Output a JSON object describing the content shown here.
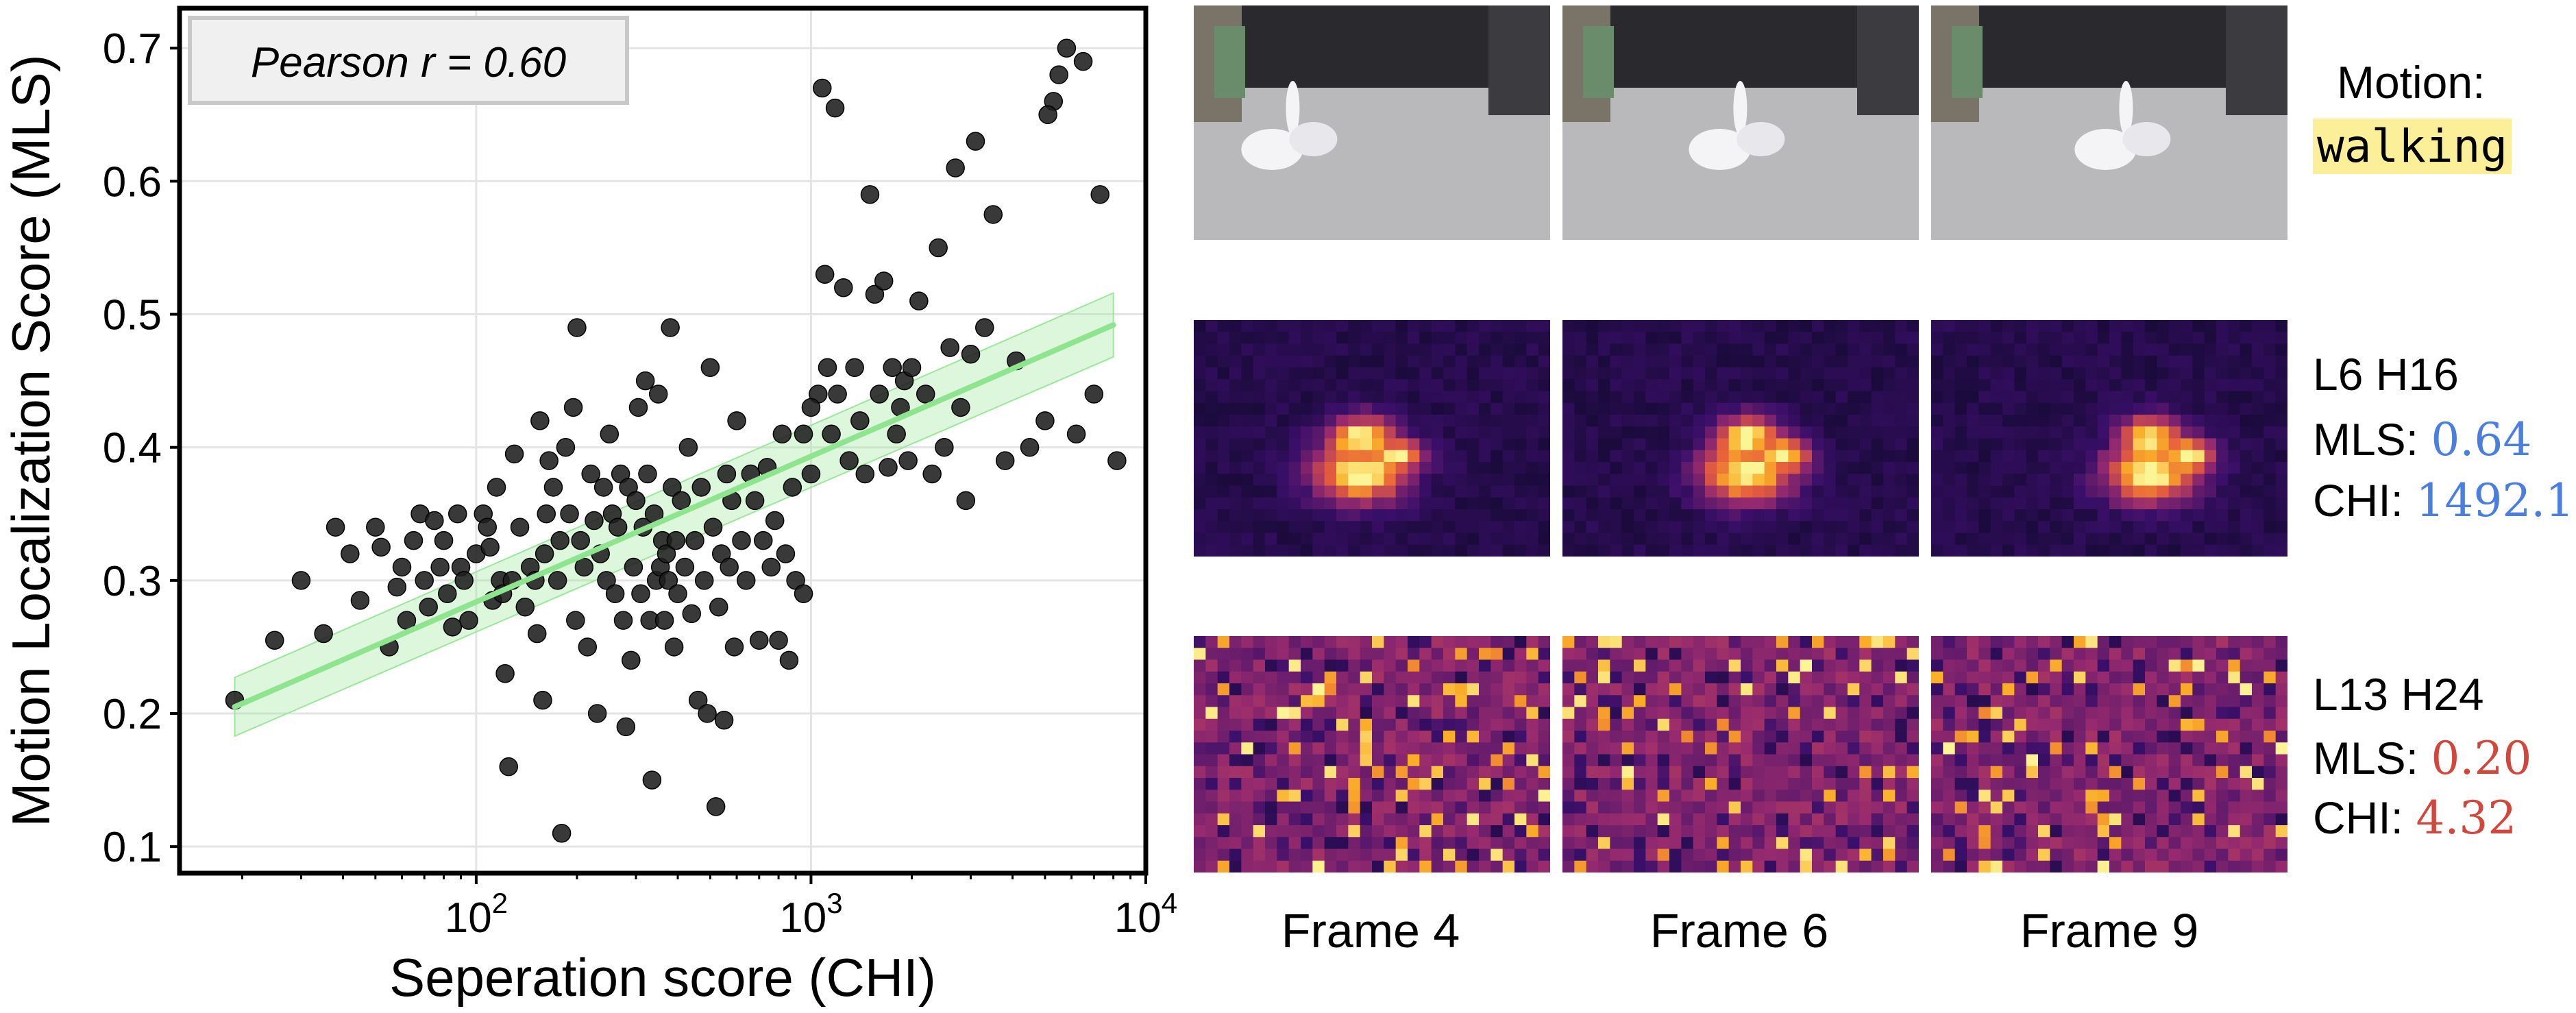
{
  "chart_data": {
    "type": "scatter",
    "xlabel": "Seperation score (CHI)",
    "ylabel": "Motion Localization Score (MLS)",
    "xscale": "log",
    "xlim": [
      13,
      10000
    ],
    "ylim": [
      0.08,
      0.73
    ],
    "x_ticks": [
      {
        "value": 100,
        "base": "10",
        "exp": "2"
      },
      {
        "value": 1000,
        "base": "10",
        "exp": "3"
      },
      {
        "value": 10000,
        "base": "10",
        "exp": "4"
      }
    ],
    "y_ticks": [
      0.1,
      0.2,
      0.3,
      0.4,
      0.5,
      0.6,
      0.7
    ],
    "y_tick_labels": [
      "0.1",
      "0.2",
      "0.3",
      "0.4",
      "0.5",
      "0.6",
      "0.7"
    ],
    "grid": true,
    "annotation": "Pearson r = 0.60",
    "fit": {
      "x": [
        19,
        8000
      ],
      "y": [
        0.205,
        0.492
      ],
      "band_halfwidth": [
        0.022,
        0.024
      ]
    },
    "points": [
      [
        19,
        0.21
      ],
      [
        25,
        0.255
      ],
      [
        30,
        0.3
      ],
      [
        35,
        0.26
      ],
      [
        38,
        0.34
      ],
      [
        42,
        0.32
      ],
      [
        45,
        0.285
      ],
      [
        50,
        0.34
      ],
      [
        52,
        0.325
      ],
      [
        55,
        0.25
      ],
      [
        58,
        0.295
      ],
      [
        60,
        0.31
      ],
      [
        62,
        0.27
      ],
      [
        65,
        0.33
      ],
      [
        68,
        0.35
      ],
      [
        70,
        0.3
      ],
      [
        72,
        0.28
      ],
      [
        75,
        0.345
      ],
      [
        78,
        0.31
      ],
      [
        80,
        0.33
      ],
      [
        82,
        0.29
      ],
      [
        85,
        0.265
      ],
      [
        88,
        0.35
      ],
      [
        90,
        0.31
      ],
      [
        92,
        0.3
      ],
      [
        95,
        0.27
      ],
      [
        100,
        0.32
      ],
      [
        105,
        0.35
      ],
      [
        108,
        0.34
      ],
      [
        110,
        0.325
      ],
      [
        112,
        0.285
      ],
      [
        115,
        0.37
      ],
      [
        118,
        0.3
      ],
      [
        120,
        0.29
      ],
      [
        122,
        0.23
      ],
      [
        125,
        0.16
      ],
      [
        128,
        0.3
      ],
      [
        130,
        0.395
      ],
      [
        135,
        0.34
      ],
      [
        140,
        0.28
      ],
      [
        145,
        0.31
      ],
      [
        150,
        0.3
      ],
      [
        152,
        0.26
      ],
      [
        155,
        0.42
      ],
      [
        158,
        0.21
      ],
      [
        160,
        0.32
      ],
      [
        162,
        0.35
      ],
      [
        165,
        0.39
      ],
      [
        170,
        0.37
      ],
      [
        175,
        0.3
      ],
      [
        178,
        0.33
      ],
      [
        180,
        0.11
      ],
      [
        185,
        0.4
      ],
      [
        190,
        0.35
      ],
      [
        195,
        0.43
      ],
      [
        198,
        0.27
      ],
      [
        200,
        0.49
      ],
      [
        205,
        0.33
      ],
      [
        210,
        0.31
      ],
      [
        215,
        0.25
      ],
      [
        220,
        0.38
      ],
      [
        225,
        0.345
      ],
      [
        230,
        0.2
      ],
      [
        235,
        0.32
      ],
      [
        240,
        0.37
      ],
      [
        245,
        0.3
      ],
      [
        250,
        0.41
      ],
      [
        255,
        0.35
      ],
      [
        260,
        0.29
      ],
      [
        265,
        0.34
      ],
      [
        270,
        0.38
      ],
      [
        275,
        0.27
      ],
      [
        280,
        0.19
      ],
      [
        285,
        0.37
      ],
      [
        290,
        0.24
      ],
      [
        295,
        0.31
      ],
      [
        300,
        0.36
      ],
      [
        305,
        0.43
      ],
      [
        310,
        0.29
      ],
      [
        315,
        0.34
      ],
      [
        320,
        0.45
      ],
      [
        325,
        0.38
      ],
      [
        330,
        0.27
      ],
      [
        335,
        0.15
      ],
      [
        340,
        0.35
      ],
      [
        345,
        0.3
      ],
      [
        350,
        0.44
      ],
      [
        355,
        0.31
      ],
      [
        360,
        0.33
      ],
      [
        365,
        0.27
      ],
      [
        370,
        0.32
      ],
      [
        375,
        0.3
      ],
      [
        380,
        0.49
      ],
      [
        385,
        0.37
      ],
      [
        390,
        0.25
      ],
      [
        395,
        0.33
      ],
      [
        400,
        0.29
      ],
      [
        410,
        0.36
      ],
      [
        420,
        0.31
      ],
      [
        430,
        0.4
      ],
      [
        440,
        0.275
      ],
      [
        450,
        0.33
      ],
      [
        460,
        0.21
      ],
      [
        470,
        0.37
      ],
      [
        480,
        0.3
      ],
      [
        490,
        0.2
      ],
      [
        500,
        0.46
      ],
      [
        510,
        0.34
      ],
      [
        520,
        0.13
      ],
      [
        530,
        0.28
      ],
      [
        540,
        0.32
      ],
      [
        550,
        0.195
      ],
      [
        560,
        0.38
      ],
      [
        570,
        0.31
      ],
      [
        580,
        0.36
      ],
      [
        590,
        0.25
      ],
      [
        600,
        0.42
      ],
      [
        620,
        0.33
      ],
      [
        640,
        0.3
      ],
      [
        660,
        0.38
      ],
      [
        680,
        0.36
      ],
      [
        700,
        0.255
      ],
      [
        720,
        0.33
      ],
      [
        740,
        0.385
      ],
      [
        760,
        0.31
      ],
      [
        780,
        0.345
      ],
      [
        800,
        0.255
      ],
      [
        820,
        0.41
      ],
      [
        840,
        0.32
      ],
      [
        860,
        0.24
      ],
      [
        880,
        0.37
      ],
      [
        900,
        0.3
      ],
      [
        950,
        0.41
      ],
      [
        1000,
        0.38
      ],
      [
        1050,
        0.44
      ],
      [
        1080,
        0.67
      ],
      [
        1100,
        0.53
      ],
      [
        1120,
        0.46
      ],
      [
        1150,
        0.41
      ],
      [
        1180,
        0.655
      ],
      [
        1200,
        0.44
      ],
      [
        1250,
        0.52
      ],
      [
        1300,
        0.39
      ],
      [
        1350,
        0.46
      ],
      [
        1400,
        0.42
      ],
      [
        1450,
        0.38
      ],
      [
        1500,
        0.59
      ],
      [
        1550,
        0.515
      ],
      [
        1600,
        0.44
      ],
      [
        1650,
        0.525
      ],
      [
        1700,
        0.385
      ],
      [
        1750,
        0.46
      ],
      [
        1800,
        0.41
      ],
      [
        1850,
        0.43
      ],
      [
        1900,
        0.45
      ],
      [
        1950,
        0.39
      ],
      [
        2000,
        0.46
      ],
      [
        2100,
        0.51
      ],
      [
        2200,
        0.44
      ],
      [
        2300,
        0.38
      ],
      [
        2400,
        0.55
      ],
      [
        2500,
        0.4
      ],
      [
        2600,
        0.475
      ],
      [
        2700,
        0.61
      ],
      [
        2800,
        0.43
      ],
      [
        2900,
        0.36
      ],
      [
        3000,
        0.47
      ],
      [
        3100,
        0.63
      ],
      [
        3300,
        0.49
      ],
      [
        3500,
        0.575
      ],
      [
        3800,
        0.39
      ],
      [
        4100,
        0.465
      ],
      [
        4500,
        0.4
      ],
      [
        5000,
        0.42
      ],
      [
        5300,
        0.66
      ],
      [
        5500,
        0.68
      ],
      [
        5800,
        0.7
      ],
      [
        6200,
        0.41
      ],
      [
        6500,
        0.69
      ],
      [
        7000,
        0.44
      ],
      [
        7300,
        0.59
      ],
      [
        8200,
        0.39
      ],
      [
        5100,
        0.65
      ],
      [
        1000,
        0.43
      ],
      [
        950,
        0.29
      ]
    ]
  },
  "panel": {
    "motion_label": "Motion:",
    "motion_value": "walking",
    "head_a": {
      "name": "L6 H16",
      "mls_label": "MLS:",
      "mls_value": "0.64",
      "chi_label": "CHI:",
      "chi_value": "1492.1",
      "value_color": "#4a7fe0"
    },
    "head_b": {
      "name": "L13 H24",
      "mls_label": "MLS:",
      "mls_value": "0.20",
      "chi_label": "CHI:",
      "chi_value": "4.32",
      "value_color": "#d2473b"
    },
    "frame_labels": [
      "Frame 4",
      "Frame 6",
      "Frame 9"
    ]
  }
}
